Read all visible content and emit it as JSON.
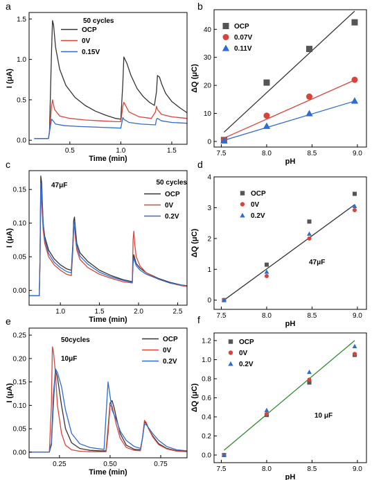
{
  "chart_data": [
    {
      "panel_label": "a",
      "type": "line",
      "xlabel": "Time (min)",
      "ylabel": "I (μA)",
      "xlim": [
        0.1,
        1.65
      ],
      "ylim": [
        -0.05,
        1.58
      ],
      "xticks": [
        0.5,
        1.0,
        1.5
      ],
      "yticks": [
        0.0,
        0.5,
        1.0,
        1.5
      ],
      "xtick_labels": [
        "0.5",
        "1.0",
        "1.5"
      ],
      "ytick_labels": [
        "0.0",
        "0.5",
        "1.0",
        "1.5"
      ],
      "annotations": [
        "50 cycles"
      ],
      "legend_position": "top-right",
      "series": [
        {
          "name": "OCP",
          "color": "#333333",
          "x": [
            0.15,
            0.29,
            0.3,
            0.32,
            0.33,
            0.34,
            0.36,
            0.4,
            0.46,
            0.55,
            0.65,
            0.75,
            0.85,
            0.95,
            1.0,
            1.02,
            1.03,
            1.06,
            1.1,
            1.16,
            1.22,
            1.28,
            1.33,
            1.35,
            1.36,
            1.38,
            1.4,
            1.44,
            1.5,
            1.58,
            1.65
          ],
          "y": [
            0.02,
            0.02,
            0.1,
            1.1,
            1.48,
            1.43,
            1.15,
            0.88,
            0.68,
            0.53,
            0.43,
            0.36,
            0.31,
            0.27,
            0.26,
            0.7,
            1.03,
            0.95,
            0.8,
            0.64,
            0.54,
            0.47,
            0.43,
            0.6,
            0.8,
            0.78,
            0.7,
            0.58,
            0.48,
            0.4,
            0.34
          ]
        },
        {
          "name": "0V",
          "color": "#d9443a",
          "x": [
            0.15,
            0.29,
            0.3,
            0.32,
            0.33,
            0.35,
            0.4,
            0.5,
            0.65,
            0.8,
            0.95,
            1.0,
            1.02,
            1.03,
            1.08,
            1.18,
            1.3,
            1.34,
            1.35,
            1.36,
            1.4,
            1.5,
            1.65
          ],
          "y": [
            0.02,
            0.02,
            0.1,
            0.42,
            0.5,
            0.38,
            0.3,
            0.27,
            0.25,
            0.24,
            0.23,
            0.23,
            0.42,
            0.47,
            0.35,
            0.29,
            0.27,
            0.35,
            0.42,
            0.38,
            0.32,
            0.29,
            0.27
          ]
        },
        {
          "name": "0.15V",
          "color": "#2f6ccf",
          "x": [
            0.15,
            0.29,
            0.3,
            0.32,
            0.33,
            0.36,
            0.45,
            0.6,
            0.8,
            1.0,
            1.02,
            1.03,
            1.08,
            1.2,
            1.34,
            1.35,
            1.36,
            1.4,
            1.5,
            1.65
          ],
          "y": [
            0.02,
            0.02,
            0.1,
            0.26,
            0.25,
            0.2,
            0.18,
            0.17,
            0.16,
            0.15,
            0.28,
            0.26,
            0.22,
            0.2,
            0.19,
            0.26,
            0.27,
            0.24,
            0.22,
            0.21
          ]
        }
      ]
    },
    {
      "panel_label": "b",
      "type": "scatter",
      "xlabel": "pH",
      "ylabel": "ΔQ (μC)",
      "xlim": [
        7.42,
        9.1
      ],
      "ylim": [
        -2,
        47
      ],
      "xticks": [
        7.5,
        8.0,
        8.5,
        9.0
      ],
      "yticks": [
        0,
        10,
        20,
        30,
        40
      ],
      "xtick_labels": [
        "7.5",
        "8.0",
        "8.5",
        "9.0"
      ],
      "ytick_labels": [
        "0",
        "10",
        "20",
        "30",
        "40"
      ],
      "legend_position": "top-left",
      "series": [
        {
          "name": "OCP",
          "color": "#555555",
          "marker": "square",
          "x": [
            7.53,
            8.0,
            8.47,
            8.97
          ],
          "y": [
            0.5,
            21,
            33,
            42.5
          ],
          "fit": [
            [
              7.53,
              3.3
            ],
            [
              8.97,
              46.5
            ]
          ],
          "fit_color": "#333333"
        },
        {
          "name": "0.07V",
          "color": "#d9443a",
          "marker": "circle",
          "x": [
            7.53,
            8.0,
            8.47,
            8.97
          ],
          "y": [
            0.5,
            9.2,
            16,
            22
          ],
          "fit": [
            [
              7.53,
              1.2
            ],
            [
              8.97,
              21.9
            ]
          ],
          "fit_color": "#d9443a"
        },
        {
          "name": "0.11V",
          "color": "#2f6ccf",
          "marker": "triangle",
          "x": [
            7.53,
            8.0,
            8.47,
            8.97
          ],
          "y": [
            0.3,
            5.5,
            10,
            14.5
          ],
          "fit": [
            [
              7.53,
              0.4
            ],
            [
              8.97,
              14.4
            ]
          ],
          "fit_color": "#2f6ccf"
        }
      ]
    },
    {
      "panel_label": "c",
      "type": "line",
      "xlabel": "Time (min)",
      "ylabel": "I (μA)",
      "xlim": [
        0.6,
        2.62
      ],
      "ylim": [
        -0.022,
        0.178
      ],
      "xticks": [
        1.0,
        1.5,
        2.0,
        2.5
      ],
      "yticks": [
        0.0,
        0.05,
        0.1,
        0.15
      ],
      "xtick_labels": [
        "1.0",
        "1.5",
        "2.0",
        "2.5"
      ],
      "ytick_labels": [
        "0.00",
        "0.05",
        "0.10",
        "0.15"
      ],
      "annotations": [
        "47μF",
        "50 cycles"
      ],
      "legend_position": "top-right",
      "series": [
        {
          "name": "OCP",
          "color": "#333333",
          "x": [
            0.6,
            0.73,
            0.74,
            0.75,
            0.76,
            0.78,
            0.8,
            0.85,
            0.92,
            1.0,
            1.08,
            1.14,
            1.16,
            1.17,
            1.18,
            1.19,
            1.21,
            1.25,
            1.35,
            1.5,
            1.65,
            1.8,
            1.92,
            1.93,
            1.94,
            1.95,
            1.97,
            2.02,
            2.1,
            2.25,
            2.4,
            2.55,
            2.62
          ],
          "y": [
            -0.008,
            -0.008,
            0.05,
            0.17,
            0.16,
            0.1,
            0.08,
            0.06,
            0.047,
            0.038,
            0.032,
            0.03,
            0.07,
            0.103,
            0.109,
            0.095,
            0.07,
            0.056,
            0.043,
            0.03,
            0.022,
            0.016,
            0.013,
            0.045,
            0.053,
            0.048,
            0.04,
            0.033,
            0.026,
            0.018,
            0.012,
            0.008,
            0.007
          ]
        },
        {
          "name": "0V",
          "color": "#d9443a",
          "x": [
            0.6,
            0.73,
            0.74,
            0.75,
            0.76,
            0.78,
            0.8,
            0.85,
            0.92,
            1.0,
            1.08,
            1.14,
            1.16,
            1.17,
            1.18,
            1.19,
            1.21,
            1.25,
            1.35,
            1.5,
            1.65,
            1.8,
            1.92,
            1.93,
            1.94,
            1.95,
            1.97,
            2.02,
            2.1,
            2.25,
            2.4,
            2.55,
            2.62
          ],
          "y": [
            -0.008,
            -0.008,
            0.04,
            0.15,
            0.13,
            0.09,
            0.07,
            0.05,
            0.038,
            0.03,
            0.024,
            0.022,
            0.06,
            0.09,
            0.095,
            0.08,
            0.06,
            0.046,
            0.034,
            0.024,
            0.018,
            0.013,
            0.011,
            0.075,
            0.088,
            0.07,
            0.05,
            0.036,
            0.026,
            0.017,
            0.011,
            0.007,
            0.006
          ]
        },
        {
          "name": "0.2V",
          "color": "#2f6ccf",
          "x": [
            0.6,
            0.73,
            0.74,
            0.75,
            0.76,
            0.78,
            0.8,
            0.85,
            0.92,
            1.0,
            1.08,
            1.14,
            1.16,
            1.17,
            1.18,
            1.19,
            1.21,
            1.25,
            1.35,
            1.5,
            1.65,
            1.8,
            1.92,
            1.93,
            1.94,
            1.95,
            1.97,
            2.02,
            2.1,
            2.25,
            2.4,
            2.55,
            2.62
          ],
          "y": [
            -0.008,
            -0.008,
            0.05,
            0.16,
            0.15,
            0.1,
            0.075,
            0.055,
            0.042,
            0.034,
            0.028,
            0.026,
            0.065,
            0.097,
            0.102,
            0.088,
            0.065,
            0.051,
            0.039,
            0.027,
            0.02,
            0.015,
            0.012,
            0.04,
            0.048,
            0.044,
            0.037,
            0.03,
            0.024,
            0.017,
            0.011,
            0.008,
            0.007
          ]
        }
      ]
    },
    {
      "panel_label": "d",
      "type": "scatter",
      "xlabel": "pH",
      "ylabel": "ΔQ (μC)",
      "xlim": [
        7.42,
        9.1
      ],
      "ylim": [
        -0.3,
        4.0
      ],
      "xticks": [
        7.5,
        8.0,
        8.5,
        9.0
      ],
      "yticks": [
        0,
        1,
        2,
        3,
        4
      ],
      "xtick_labels": [
        "7.5",
        "8.0",
        "8.5",
        "9.0"
      ],
      "ytick_labels": [
        "0",
        "1",
        "2",
        "3",
        "4"
      ],
      "annotations": [
        "47μF"
      ],
      "legend_position": "top-left",
      "series": [
        {
          "name": "OCP",
          "color": "#555555",
          "marker": "square",
          "x": [
            7.53,
            8.0,
            8.47,
            8.97
          ],
          "y": [
            0.0,
            1.15,
            2.55,
            3.45
          ]
        },
        {
          "name": "0V",
          "color": "#d9443a",
          "marker": "circle",
          "x": [
            7.53,
            8.0,
            8.47,
            8.97
          ],
          "y": [
            0.0,
            0.78,
            2.0,
            2.92
          ]
        },
        {
          "name": "0.2V",
          "color": "#2f6ccf",
          "marker": "triangle",
          "x": [
            7.53,
            8.0,
            8.47,
            8.97
          ],
          "y": [
            0.0,
            0.92,
            2.15,
            3.05
          ]
        }
      ],
      "fit": {
        "color": "#333333",
        "points": [
          [
            7.53,
            0.0
          ],
          [
            8.97,
            3.1
          ]
        ]
      }
    },
    {
      "panel_label": "e",
      "type": "line",
      "xlabel": "Time (min)",
      "ylabel": "I (μA)",
      "xlim": [
        0.1,
        0.88
      ],
      "ylim": [
        -0.012,
        0.265
      ],
      "xticks": [
        0.25,
        0.5,
        0.75
      ],
      "yticks": [
        0.0,
        0.05,
        0.1,
        0.15,
        0.2,
        0.25
      ],
      "xtick_labels": [
        "0.25",
        "0.50",
        "0.75"
      ],
      "ytick_labels": [
        "0.00",
        "0.05",
        "0.10",
        "0.15",
        "0.20",
        "0.25"
      ],
      "annotations": [
        "50cycles",
        "10μF"
      ],
      "legend_position": "top-right",
      "series": [
        {
          "name": "OCP",
          "color": "#333333",
          "x": [
            0.1,
            0.2,
            0.21,
            0.22,
            0.23,
            0.24,
            0.26,
            0.28,
            0.31,
            0.35,
            0.4,
            0.45,
            0.48,
            0.49,
            0.5,
            0.51,
            0.52,
            0.53,
            0.55,
            0.58,
            0.62,
            0.65,
            0.66,
            0.67,
            0.68,
            0.69,
            0.71,
            0.74,
            0.78,
            0.83,
            0.88
          ],
          "y": [
            0.0,
            0.0,
            0.02,
            0.12,
            0.175,
            0.16,
            0.1,
            0.05,
            0.02,
            0.008,
            0.004,
            0.003,
            0.003,
            0.05,
            0.105,
            0.11,
            0.095,
            0.075,
            0.04,
            0.015,
            0.006,
            0.005,
            0.03,
            0.065,
            0.06,
            0.05,
            0.035,
            0.018,
            0.008,
            0.003,
            0.002
          ]
        },
        {
          "name": "0V",
          "color": "#d9443a",
          "x": [
            0.1,
            0.2,
            0.21,
            0.215,
            0.22,
            0.23,
            0.24,
            0.26,
            0.28,
            0.31,
            0.35,
            0.4,
            0.45,
            0.48,
            0.49,
            0.5,
            0.51,
            0.52,
            0.53,
            0.55,
            0.58,
            0.62,
            0.65,
            0.66,
            0.67,
            0.68,
            0.69,
            0.71,
            0.74,
            0.78,
            0.83,
            0.88
          ],
          "y": [
            0.0,
            0.0,
            0.1,
            0.225,
            0.215,
            0.17,
            0.1,
            0.04,
            0.015,
            0.005,
            0.002,
            0.001,
            0.001,
            0.001,
            0.04,
            0.1,
            0.098,
            0.08,
            0.06,
            0.03,
            0.01,
            0.004,
            0.003,
            0.03,
            0.068,
            0.062,
            0.05,
            0.033,
            0.016,
            0.007,
            0.002,
            0.001
          ]
        },
        {
          "name": "0.2V",
          "color": "#2f6ccf",
          "x": [
            0.1,
            0.2,
            0.21,
            0.22,
            0.23,
            0.24,
            0.26,
            0.28,
            0.31,
            0.35,
            0.4,
            0.45,
            0.47,
            0.48,
            0.49,
            0.5,
            0.51,
            0.53,
            0.55,
            0.58,
            0.62,
            0.65,
            0.66,
            0.67,
            0.68,
            0.69,
            0.71,
            0.74,
            0.78,
            0.83,
            0.88
          ],
          "y": [
            0.0,
            0.0,
            0.015,
            0.1,
            0.178,
            0.17,
            0.14,
            0.09,
            0.04,
            0.018,
            0.01,
            0.007,
            0.006,
            0.08,
            0.15,
            0.12,
            0.09,
            0.07,
            0.045,
            0.025,
            0.012,
            0.008,
            0.03,
            0.06,
            0.058,
            0.052,
            0.04,
            0.025,
            0.012,
            0.005,
            0.003
          ]
        }
      ]
    },
    {
      "panel_label": "f",
      "type": "scatter",
      "xlabel": "pH",
      "ylabel": "ΔQ (μC)",
      "xlim": [
        7.42,
        9.1
      ],
      "ylim": [
        -0.08,
        1.28
      ],
      "xticks": [
        7.5,
        8.0,
        8.5,
        9.0
      ],
      "yticks": [
        0.0,
        0.2,
        0.4,
        0.6,
        0.8,
        1.0,
        1.2
      ],
      "xtick_labels": [
        "7.5",
        "8.0",
        "8.5",
        "9.0"
      ],
      "ytick_labels": [
        "0.0",
        "0.2",
        "0.4",
        "0.6",
        "0.8",
        "1.0",
        "1.2"
      ],
      "annotations": [
        "10 μF"
      ],
      "legend_position": "top-left",
      "series": [
        {
          "name": "OCP",
          "color": "#555555",
          "marker": "square",
          "x": [
            7.53,
            8.0,
            8.47,
            8.97
          ],
          "y": [
            0.0,
            0.42,
            0.76,
            1.05
          ]
        },
        {
          "name": "0V",
          "color": "#d9443a",
          "marker": "circle",
          "x": [
            7.53,
            8.0,
            8.47,
            8.97
          ],
          "y": [
            0.0,
            0.43,
            0.79,
            1.06
          ]
        },
        {
          "name": "0.2V",
          "color": "#2f6ccf",
          "marker": "triangle",
          "x": [
            7.53,
            8.0,
            8.47,
            8.97
          ],
          "y": [
            0.0,
            0.47,
            0.87,
            1.14
          ]
        }
      ],
      "fit": {
        "color": "#2e8b2e",
        "points": [
          [
            7.53,
            0.05
          ],
          [
            8.97,
            1.2
          ]
        ]
      }
    }
  ]
}
